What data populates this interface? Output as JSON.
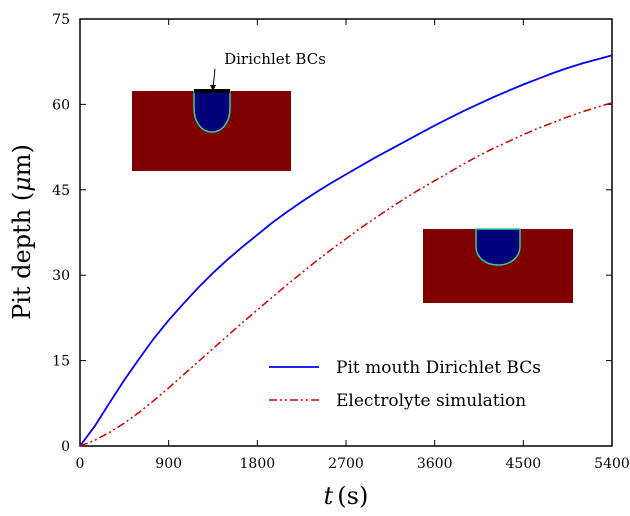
{
  "chart_data": {
    "type": "line",
    "xlabel_var": "t",
    "xlabel_unit": "(s)",
    "ylabel_text": "Pit depth (",
    "ylabel_mu": "μ",
    "ylabel_unit": "m)",
    "xlim": [
      0,
      5400
    ],
    "ylim": [
      0,
      75
    ],
    "xticks": [
      0,
      900,
      1800,
      2700,
      3600,
      4500,
      5400
    ],
    "yticks": [
      0,
      15,
      30,
      45,
      60,
      75
    ],
    "grid": false,
    "legend_position": "lower-right",
    "series": [
      {
        "name": "Pit mouth Dirichlet BCs",
        "color": "#0000ee",
        "style": "solid",
        "x": [
          0,
          150,
          300,
          450,
          600,
          750,
          900,
          1050,
          1200,
          1350,
          1500,
          1650,
          1800,
          1950,
          2100,
          2250,
          2400,
          2550,
          2700,
          2850,
          3000,
          3150,
          3300,
          3450,
          3600,
          3750,
          3900,
          4050,
          4200,
          4350,
          4500,
          4650,
          4800,
          4950,
          5100,
          5250,
          5400
        ],
        "values": [
          0,
          3.5,
          7.6,
          11.6,
          15.3,
          18.9,
          22.1,
          25.0,
          27.8,
          30.4,
          32.8,
          35.0,
          37.1,
          39.2,
          41.1,
          42.9,
          44.6,
          46.2,
          47.7,
          49.2,
          50.7,
          52.1,
          53.5,
          54.9,
          56.3,
          57.6,
          58.9,
          60.1,
          61.3,
          62.4,
          63.5,
          64.5,
          65.5,
          66.4,
          67.2,
          67.9,
          68.6
        ]
      },
      {
        "name": "Electrolyte simulation",
        "color": "#cc0000",
        "style": "dashdot",
        "x": [
          0,
          150,
          300,
          450,
          600,
          750,
          900,
          1050,
          1200,
          1350,
          1500,
          1650,
          1800,
          1950,
          2100,
          2250,
          2400,
          2550,
          2700,
          2850,
          3000,
          3150,
          3300,
          3450,
          3600,
          3750,
          3900,
          4050,
          4200,
          4350,
          4500,
          4650,
          4800,
          4950,
          5100,
          5250,
          5400
        ],
        "values": [
          0,
          1.0,
          2.4,
          4.0,
          5.9,
          8.0,
          10.2,
          12.5,
          14.8,
          17.1,
          19.4,
          21.7,
          23.9,
          26.1,
          28.3,
          30.4,
          32.5,
          34.5,
          36.4,
          38.3,
          40.1,
          41.8,
          43.5,
          45.1,
          46.6,
          48.1,
          49.6,
          51.0,
          52.3,
          53.5,
          54.7,
          55.8,
          56.8,
          57.8,
          58.7,
          59.5,
          60.3
        ]
      }
    ],
    "annotations": [
      {
        "text": "Dirichlet BCs"
      }
    ]
  }
}
